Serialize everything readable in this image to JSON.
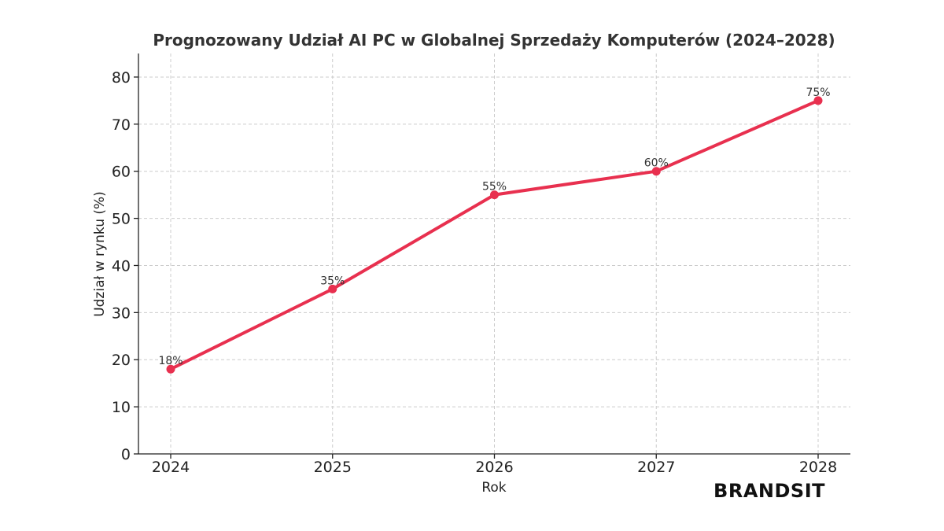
{
  "chart_data": {
    "type": "line",
    "title": "Prognozowany Udział AI PC w Globalnej Sprzedaży Komputerów (2024–2028)",
    "xlabel": "Rok",
    "ylabel": "Udział w rynku (%)",
    "categories": [
      "2024",
      "2025",
      "2026",
      "2027",
      "2028"
    ],
    "x": [
      2024,
      2025,
      2026,
      2027,
      2028
    ],
    "series": [
      {
        "values": [
          18,
          35,
          55,
          60,
          75
        ],
        "labels": [
          "18%",
          "35%",
          "55%",
          "60%",
          "75%"
        ]
      }
    ],
    "ylim": [
      0,
      85
    ],
    "yticks": [
      0,
      10,
      20,
      30,
      40,
      50,
      60,
      70,
      80
    ],
    "grid": true,
    "line_color": "#e8304f"
  },
  "brand": {
    "text": "BRANDSIT"
  }
}
